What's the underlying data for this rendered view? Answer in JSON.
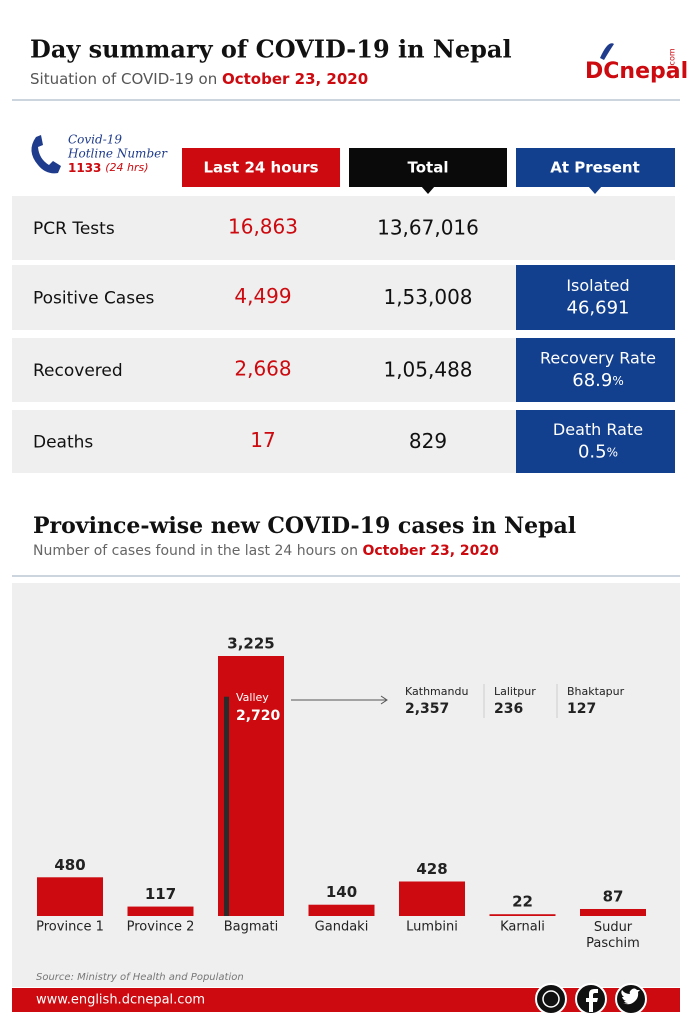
{
  "header": {
    "title": "Day summary of COVID-19 in Nepal",
    "subtitle": "Situation of COVID-19 on",
    "date": "October 23, 2020",
    "logo": "DCnepal",
    "logo_suffix": ".com"
  },
  "hotline": {
    "line1": "Covid-19",
    "line2": "Hotline Number",
    "number": "1133",
    "hours": "(24 hrs)"
  },
  "table": {
    "columns": [
      "Last 24 hours",
      "Total",
      "At Present"
    ],
    "rows": [
      {
        "label": "PCR Tests",
        "last_24_hours": "16,863",
        "total": "13,67,016"
      },
      {
        "label": "Positive Cases",
        "last_24_hours": "4,499",
        "total": "1,53,008",
        "present_label": "Isolated",
        "present_value": "46,691"
      },
      {
        "label": "Recovered",
        "last_24_hours": "2,668",
        "total": "1,05,488",
        "present_label": "Recovery Rate",
        "present_value": "68.9",
        "present_unit": "%"
      },
      {
        "label": "Deaths",
        "last_24_hours": "17",
        "total": "829",
        "present_label": "Death Rate",
        "present_value": "0.5",
        "present_unit": "%"
      }
    ]
  },
  "chart_data": {
    "type": "bar",
    "title": "Province-wise new COVID-19 cases in Nepal",
    "subtitle": "Number of cases found in the last 24 hours on",
    "date": "October 23, 2020",
    "categories": [
      "Province 1",
      "Province 2",
      "Bagmati",
      "Gandaki",
      "Lumbini",
      "Karnali",
      "Sudur Paschim"
    ],
    "values": [
      480,
      117,
      3225,
      140,
      428,
      22,
      87
    ],
    "value_labels": [
      "480",
      "117",
      "3,225",
      "140",
      "428",
      "22",
      "87"
    ],
    "color": "#cc0a0f",
    "valley": {
      "label": "Valley",
      "value": 2720,
      "value_label": "2,720",
      "color": "#2b2b2b",
      "districts": [
        {
          "name": "Kathmandu",
          "value": "2,357"
        },
        {
          "name": "Lalitpur",
          "value": "236"
        },
        {
          "name": "Bhaktapur",
          "value": "127"
        }
      ]
    }
  },
  "footer": {
    "source": "Source: Ministry of Health and Population",
    "url": "www.english.dcnepal.com"
  }
}
